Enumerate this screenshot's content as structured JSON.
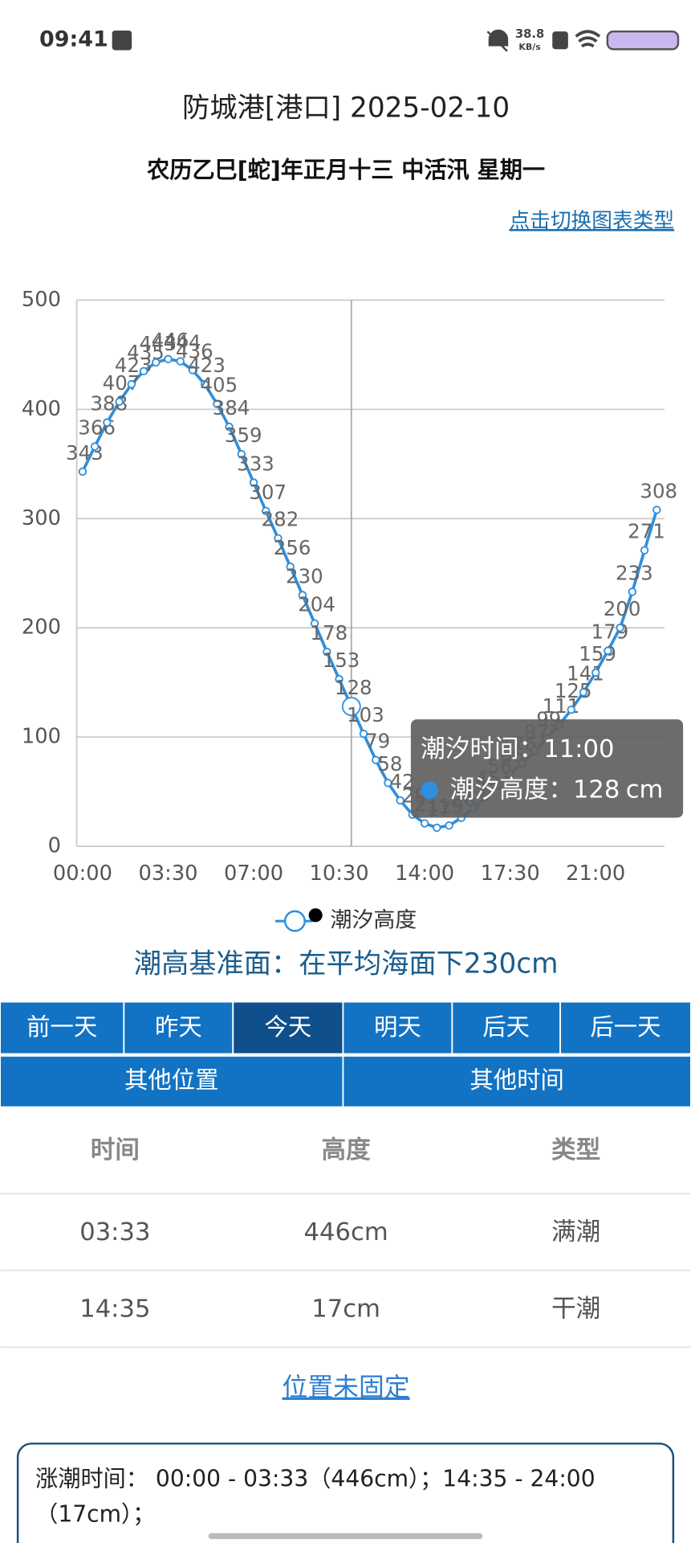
{
  "status_bar": {
    "time": "09:41",
    "net_speed": "38.8",
    "net_unit": "KB/s"
  },
  "header": {
    "title": "防城港[港口]  2025-02-10",
    "subtitle": "农历乙巳[蛇]年正月十三  中活汛  星期一",
    "switch_link": "点击切换图表类型"
  },
  "chart_data": {
    "type": "line",
    "categories": [
      "00:00",
      null,
      null,
      null,
      null,
      null,
      null,
      "03:30",
      null,
      null,
      null,
      null,
      null,
      null,
      "07:00",
      null,
      null,
      null,
      null,
      null,
      null,
      "10:30",
      null,
      null,
      null,
      null,
      null,
      null,
      "14:00",
      null,
      null,
      null,
      null,
      null,
      null,
      "17:30",
      null,
      null,
      null,
      null,
      null,
      null,
      "21:00",
      null,
      null,
      null,
      null,
      null
    ],
    "series": [
      {
        "name": "潮汐高度",
        "color": "#2f8fdd",
        "values": [
          343,
          366,
          388,
          407,
          423,
          435,
          443,
          446,
          444,
          436,
          423,
          405,
          384,
          359,
          333,
          307,
          282,
          256,
          230,
          204,
          178,
          153,
          128,
          103,
          79,
          58,
          42,
          29,
          21,
          17,
          19,
          26,
          35,
          45,
          56,
          66,
          76,
          87,
          99,
          111,
          125,
          141,
          159,
          179,
          200,
          233,
          271,
          308
        ]
      }
    ],
    "ylim": [
      0,
      500
    ],
    "yticks": [
      0,
      100,
      200,
      300,
      400,
      500
    ],
    "grid": true,
    "tooltip": {
      "time_label": "潮汐时间：",
      "time": "11:00",
      "height_label": "潮汐高度：",
      "height": 128,
      "unit": "cm"
    }
  },
  "datum": "潮高基准面：在平均海面下230cm",
  "nav": {
    "row1": [
      "前一天",
      "昨天",
      "今天",
      "明天",
      "后天",
      "后一天"
    ],
    "row2": [
      "其他位置",
      "其他时间"
    ]
  },
  "table": {
    "header": [
      "时间",
      "高度",
      "类型"
    ],
    "rows": [
      [
        "03:33",
        "446cm",
        "满潮"
      ],
      [
        "14:35",
        "17cm",
        "干潮"
      ]
    ]
  },
  "location_link": "位置未固定",
  "info_box": {
    "lines": [
      "涨潮时间：  00:00 - 03:33（446cm）；14:35 - 24:00",
      "（17cm）；"
    ]
  }
}
